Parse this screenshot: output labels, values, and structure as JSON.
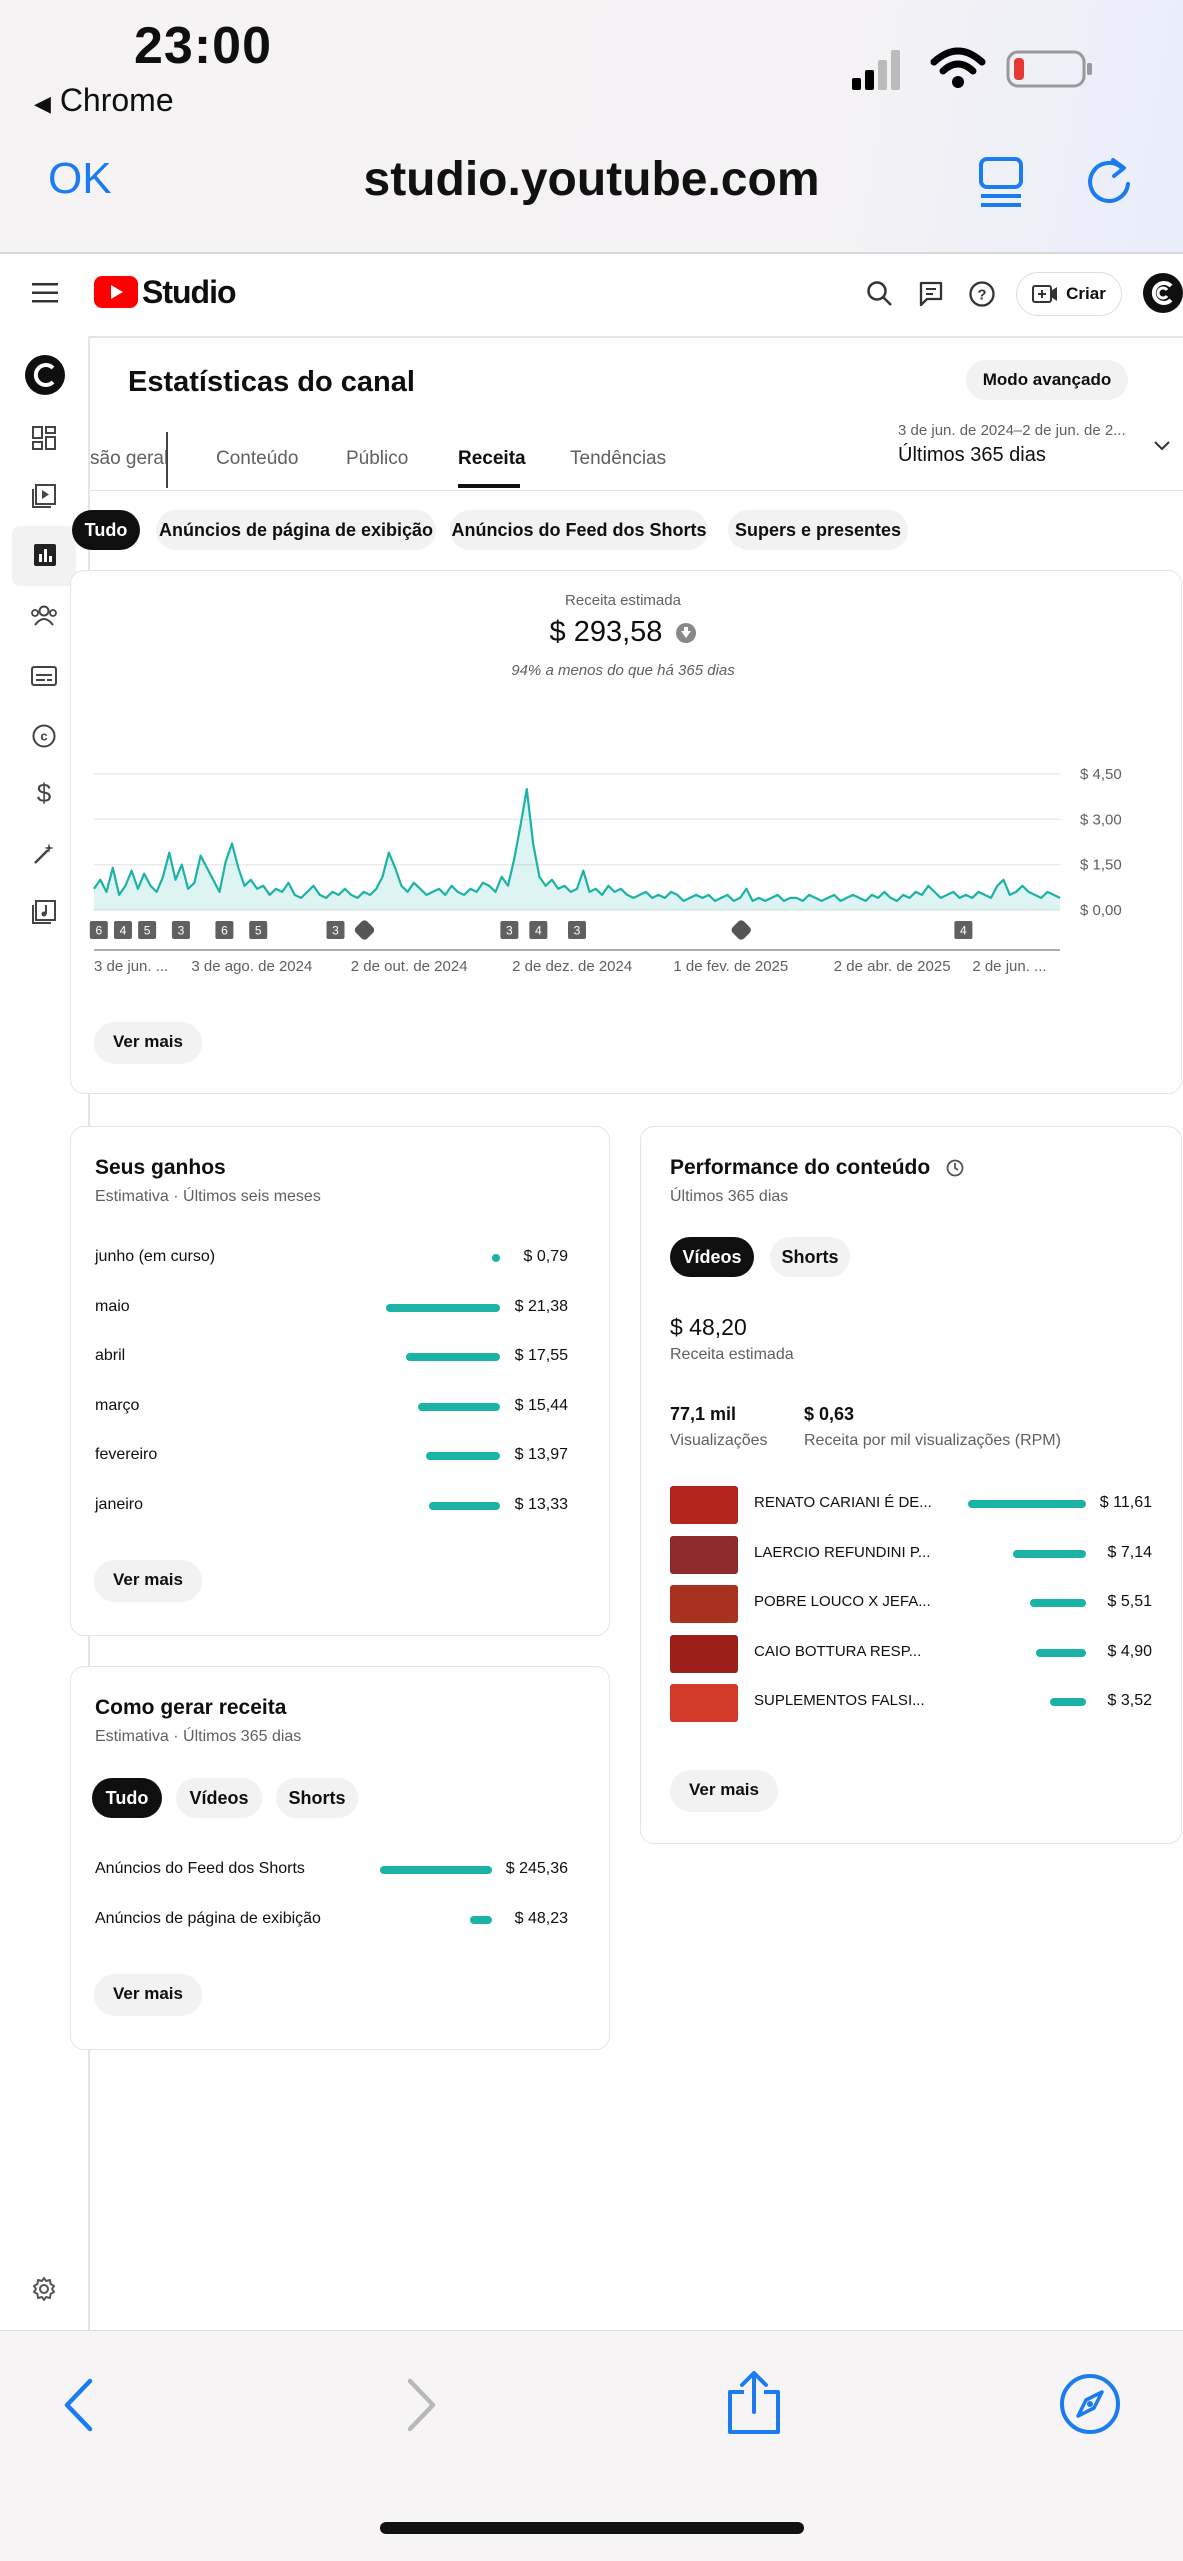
{
  "ios": {
    "time": "23:00",
    "back_app": "Chrome",
    "ok": "OK",
    "url": "studio.youtube.com"
  },
  "header": {
    "brand": "Studio",
    "create": "Criar"
  },
  "page": {
    "title": "Estatísticas do canal",
    "advanced_mode": "Modo avançado"
  },
  "tabs": [
    "são geral",
    "Conteúdo",
    "Público",
    "Receita",
    "Tendências"
  ],
  "active_tab": "Receita",
  "date_range": {
    "dates": "3 de jun. de 2024–2 de jun. de 2...",
    "label": "Últimos 365 dias"
  },
  "filter_chips": [
    "Tudo",
    "Anúncios de página de exibição",
    "Anúncios do Feed dos Shorts",
    "Supers e presentes"
  ],
  "revenue": {
    "label": "Receita estimada",
    "value": "$ 293,58",
    "comparison": "94% a menos do que há 365 dias"
  },
  "chart_data": {
    "type": "area",
    "ylabel": "",
    "yticks": [
      "$ 4,50",
      "$ 3,00",
      "$ 1,50",
      "$ 0,00"
    ],
    "ylim": [
      0,
      4.5
    ],
    "xticks": [
      "3 de jun. ...",
      "3 de ago. de 2024",
      "2 de out. de 2024",
      "2 de dez. de 2024",
      "1 de fev. de 2025",
      "2 de abr. de 2025",
      "2 de jun. ..."
    ],
    "grid": true,
    "color": "#1ab3a6",
    "values": [
      0.7,
      1.0,
      0.6,
      1.4,
      0.5,
      0.8,
      1.3,
      0.7,
      1.2,
      0.8,
      0.6,
      1.1,
      1.9,
      1.0,
      1.5,
      0.7,
      0.9,
      1.8,
      1.4,
      1.0,
      0.6,
      1.6,
      2.2,
      1.4,
      0.8,
      1.0,
      0.7,
      0.8,
      0.5,
      0.7,
      0.6,
      0.9,
      0.5,
      0.4,
      0.6,
      0.8,
      0.5,
      0.4,
      0.6,
      0.5,
      0.7,
      0.5,
      0.4,
      0.6,
      0.5,
      0.7,
      1.1,
      1.9,
      1.4,
      0.8,
      0.6,
      0.9,
      0.7,
      0.5,
      0.6,
      0.7,
      0.5,
      0.8,
      0.6,
      0.5,
      0.7,
      0.6,
      0.9,
      0.8,
      0.6,
      1.1,
      0.8,
      1.7,
      2.8,
      4.0,
      2.2,
      1.1,
      0.8,
      1.0,
      0.7,
      0.8,
      0.6,
      0.7,
      1.3,
      0.6,
      0.7,
      0.5,
      0.8,
      0.6,
      0.7,
      0.5,
      0.4,
      0.5,
      0.6,
      0.4,
      0.5,
      0.4,
      0.6,
      0.5,
      0.3,
      0.4,
      0.5,
      0.4,
      0.5,
      0.3,
      0.4,
      0.5,
      0.3,
      0.4,
      0.7,
      0.3,
      0.4,
      0.3,
      0.4,
      0.5,
      0.3,
      0.4,
      0.4,
      0.3,
      0.5,
      0.4,
      0.3,
      0.4,
      0.5,
      0.3,
      0.4,
      0.5,
      0.4,
      0.3,
      0.5,
      0.4,
      0.6,
      0.4,
      0.3,
      0.5,
      0.4,
      0.6,
      0.5,
      0.8,
      0.6,
      0.4,
      0.5,
      0.6,
      0.4,
      0.5,
      0.4,
      0.6,
      0.5,
      0.4,
      0.8,
      1.0,
      0.5,
      0.6,
      0.8,
      0.6,
      0.5,
      0.4,
      0.6,
      0.5,
      0.4
    ],
    "markers": [
      {
        "label": "6"
      },
      {
        "label": "4"
      },
      {
        "label": "5"
      },
      {
        "label": "3"
      },
      {
        "label": "6"
      },
      {
        "label": "5"
      },
      {
        "label": "3"
      },
      {
        "label": "shorts"
      },
      {
        "label": "3"
      },
      {
        "label": "4"
      },
      {
        "label": "3"
      },
      {
        "label": "shorts"
      },
      {
        "label": "4"
      }
    ]
  },
  "see_more": "Ver mais",
  "earnings": {
    "title": "Seus ganhos",
    "subtitle": "Estimativa · Últimos seis meses",
    "rows": [
      {
        "label": "junho (em curso)",
        "value": "$ 0,79",
        "amount": 0.79
      },
      {
        "label": "maio",
        "value": "$ 21,38",
        "amount": 21.38
      },
      {
        "label": "abril",
        "value": "$ 17,55",
        "amount": 17.55
      },
      {
        "label": "março",
        "value": "$ 15,44",
        "amount": 15.44
      },
      {
        "label": "fevereiro",
        "value": "$ 13,97",
        "amount": 13.97
      },
      {
        "label": "janeiro",
        "value": "$ 13,33",
        "amount": 13.33
      }
    ]
  },
  "how_to": {
    "title": "Como gerar receita",
    "subtitle": "Estimativa · Últimos 365 dias",
    "chips": [
      "Tudo",
      "Vídeos",
      "Shorts"
    ],
    "rows": [
      {
        "label": "Anúncios do Feed dos Shorts",
        "value": "$ 245,36",
        "amount": 245.36
      },
      {
        "label": "Anúncios de página de exibição",
        "value": "$ 48,23",
        "amount": 48.23
      }
    ]
  },
  "performance": {
    "title": "Performance do conteúdo",
    "subtitle": "Últimos 365 dias",
    "chips": [
      "Vídeos",
      "Shorts"
    ],
    "revenue_value": "$ 48,20",
    "revenue_label": "Receita estimada",
    "views_value": "77,1 mil",
    "views_label": "Visualizações",
    "rpm_value": "$ 0,63",
    "rpm_label": "Receita por mil visualizações (RPM)",
    "videos": [
      {
        "title": "RENATO CARIANI É DE...",
        "value": "$ 11,61",
        "amount": 11.61,
        "color": "#b3241d"
      },
      {
        "title": "LAERCIO REFUNDINI P...",
        "value": "$ 7,14",
        "amount": 7.14,
        "color": "#8d2a2a"
      },
      {
        "title": "POBRE LOUCO X JEFA...",
        "value": "$ 5,51",
        "amount": 5.51,
        "color": "#a8321e"
      },
      {
        "title": "CAIO BOTTURA RESP...",
        "value": "$ 4,90",
        "amount": 4.9,
        "color": "#9c1f1a"
      },
      {
        "title": "SUPLEMENTOS FALSI...",
        "value": "$ 3,52",
        "amount": 3.52,
        "color": "#d23a2a"
      }
    ]
  }
}
